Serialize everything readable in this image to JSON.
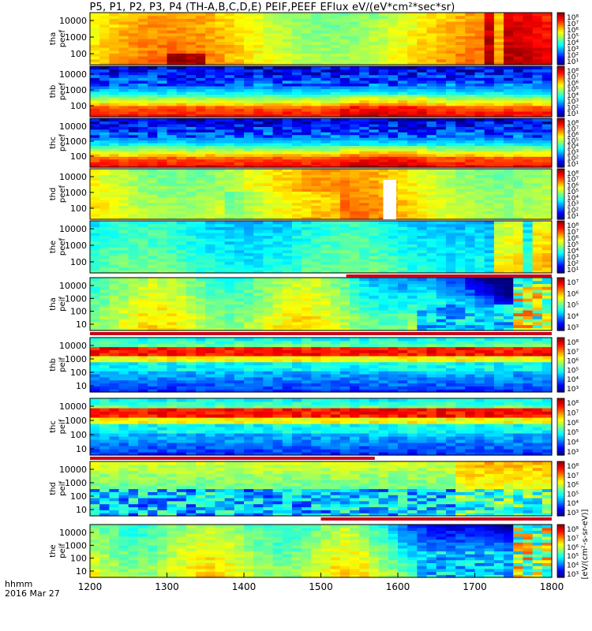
{
  "title": "P5, P1, P2, P3, P4 (TH-A,B,C,D,E) PEIF,PEEF EFlux eV/(eV*cm²*sec*sr)",
  "time_label": "hhmm",
  "date_label": "2016 Mar 27",
  "chart_data": {
    "type": "heatmap",
    "x_ticks": [
      1200,
      1300,
      1400,
      1500,
      1600,
      1700,
      1800
    ],
    "xlim": [
      1200,
      1800
    ],
    "colorbar_unit_label": "[eV/(cm²-s-sr-eV)]",
    "panels": [
      {
        "probe": "tha",
        "species": "peef",
        "y_ticks": [
          "10000",
          "1000",
          "100"
        ],
        "cbar_ticks": [
          "10⁸",
          "10⁷",
          "10⁶",
          "10⁵",
          "10⁴",
          "10³",
          "10²",
          "10¹"
        ],
        "kind": "e_warm"
      },
      {
        "probe": "thb",
        "species": "peef",
        "y_ticks": [
          "10000",
          "1000",
          "100"
        ],
        "cbar_ticks": [
          "10⁸",
          "10⁷",
          "10⁶",
          "10⁵",
          "10⁴",
          "10³",
          "10²",
          "10¹"
        ],
        "kind": "e_band"
      },
      {
        "probe": "thc",
        "species": "peef",
        "y_ticks": [
          "10000",
          "1000",
          "100"
        ],
        "cbar_ticks": [
          "10⁸",
          "10⁷",
          "10⁶",
          "10⁵",
          "10⁴",
          "10³",
          "10²",
          "10¹"
        ],
        "kind": "e_band"
      },
      {
        "probe": "thd",
        "species": "peef",
        "y_ticks": [
          "10000",
          "1000",
          "100"
        ],
        "cbar_ticks": [
          "10⁸",
          "10⁷",
          "10⁶",
          "10⁵",
          "10⁴",
          "10³",
          "10²",
          "10¹"
        ],
        "kind": "e_warm"
      },
      {
        "probe": "the",
        "species": "peef",
        "y_ticks": [
          "10000",
          "1000",
          "100"
        ],
        "cbar_ticks": [
          "10⁸",
          "10⁷",
          "10⁶",
          "10⁵",
          "10⁴",
          "10³",
          "10²",
          "10¹"
        ],
        "kind": "e_cool"
      },
      {
        "probe": "tha",
        "species": "peif",
        "y_ticks": [
          "10000",
          "1000",
          "100",
          "10"
        ],
        "cbar_ticks": [
          "10⁷",
          "10⁶",
          "10⁵",
          "10⁴",
          "10³"
        ],
        "kind": "i_a"
      },
      {
        "probe": "thb",
        "species": "peif",
        "y_ticks": [
          "10000",
          "1000",
          "100",
          "10"
        ],
        "cbar_ticks": [
          "10⁸",
          "10⁷",
          "10⁶",
          "10⁵",
          "10⁴",
          "10³"
        ],
        "kind": "i_band"
      },
      {
        "probe": "thc",
        "species": "peif",
        "y_ticks": [
          "10000",
          "1000",
          "100",
          "10"
        ],
        "cbar_ticks": [
          "10⁸",
          "10⁷",
          "10⁶",
          "10⁵",
          "10⁴",
          "10³"
        ],
        "kind": "i_band"
      },
      {
        "probe": "thd",
        "species": "peif",
        "y_ticks": [
          "10000",
          "1000",
          "100",
          "10"
        ],
        "cbar_ticks": [
          "10⁸",
          "10⁷",
          "10⁶",
          "10⁵",
          "10⁴",
          "10³"
        ],
        "kind": "i_d"
      },
      {
        "probe": "the",
        "species": "peif",
        "y_ticks": [
          "10000",
          "1000",
          "100",
          "10"
        ],
        "cbar_ticks": [
          "10⁸",
          "10⁷",
          "10⁶",
          "10⁵",
          "10⁴",
          "10³"
        ],
        "kind": "i_a"
      }
    ],
    "gaps": [
      {
        "panel": 3,
        "x_start": 1581,
        "x_end": 1598
      }
    ],
    "flag_bars": [
      {
        "after_panel": 4,
        "x_start": 1533,
        "x_end": 1800
      },
      {
        "after_panel": 5,
        "x_start": 1200,
        "x_end": 1800
      },
      {
        "after_panel": 7,
        "x_start": 1200,
        "x_end": 1570
      },
      {
        "after_panel": 8,
        "x_start": 1500,
        "x_end": 1800
      }
    ]
  }
}
